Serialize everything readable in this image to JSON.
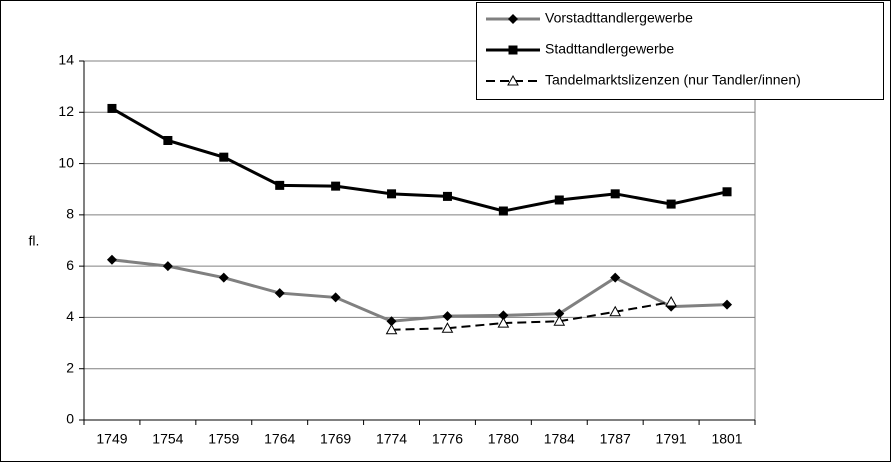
{
  "chart_data": {
    "type": "line",
    "y_label": "fl.",
    "categories": [
      "1749",
      "1754",
      "1759",
      "1764",
      "1769",
      "1774",
      "1776",
      "1780",
      "1784",
      "1787",
      "1791",
      "1801"
    ],
    "series": [
      {
        "name": "Vorstadttandlergewerbe",
        "color": "#808080",
        "marker": "diamond",
        "dash": false,
        "values": [
          6.25,
          6.0,
          5.55,
          4.95,
          4.78,
          3.85,
          4.05,
          4.08,
          4.15,
          5.55,
          4.42,
          4.5
        ]
      },
      {
        "name": "Stadttandlergewerbe",
        "color": "#000000",
        "marker": "square",
        "dash": false,
        "values": [
          12.15,
          10.9,
          10.25,
          9.15,
          9.12,
          8.82,
          8.72,
          8.15,
          8.58,
          8.82,
          8.42,
          8.9
        ]
      },
      {
        "name": "Tandelmarktslizenzen (nur Tandler/innen)",
        "color": "#000000",
        "marker": "triangle",
        "dash": true,
        "values": [
          null,
          null,
          null,
          null,
          null,
          3.52,
          3.58,
          3.78,
          3.85,
          4.22,
          4.6,
          null
        ]
      }
    ],
    "ylim": [
      0,
      14
    ],
    "yticks": [
      0,
      2,
      4,
      6,
      8,
      10,
      12,
      14
    ],
    "grid": true,
    "legend": "top-right"
  }
}
